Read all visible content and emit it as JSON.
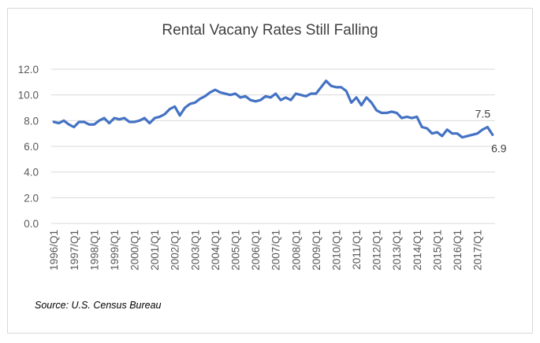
{
  "chart_data": {
    "type": "line",
    "title": "Rental Vacany Rates Still Falling",
    "source": "Source: U.S. Census Bureau",
    "ylim": [
      0,
      12
    ],
    "y_ticks": [
      "0.0",
      "2.0",
      "4.0",
      "6.0",
      "8.0",
      "10.0",
      "12.0"
    ],
    "x_tick_labels": [
      "1996/Q1",
      "1997/Q1",
      "1998/Q1",
      "1999/Q1",
      "2000/Q1",
      "2001/Q1",
      "2002/Q1",
      "2003/Q1",
      "2004/Q1",
      "2005/Q1",
      "2006/Q1",
      "2007/Q1",
      "2008/Q1",
      "2009/Q1",
      "2010/Q1",
      "2011/Q1",
      "2012/Q1",
      "2013/Q1",
      "2014/Q1",
      "2015/Q1",
      "2016/Q1",
      "2017/Q1"
    ],
    "grid": "horizontal",
    "line_color": "#4472c4",
    "annotations": [
      {
        "label": "7.5",
        "value": 7.5,
        "quarter": "2017/Q3"
      },
      {
        "label": "6.9",
        "value": 6.9,
        "quarter": "2017/Q4"
      }
    ],
    "series": [
      {
        "quarters_start": "1996/Q1",
        "quarters_end": "2017/Q4",
        "values": [
          7.9,
          7.8,
          8.0,
          7.7,
          7.5,
          7.9,
          7.9,
          7.7,
          7.7,
          8.0,
          8.2,
          7.8,
          8.2,
          8.1,
          8.2,
          7.9,
          7.9,
          8.0,
          8.2,
          7.8,
          8.2,
          8.3,
          8.5,
          8.9,
          9.1,
          8.4,
          9.0,
          9.3,
          9.4,
          9.7,
          9.9,
          10.2,
          10.4,
          10.2,
          10.1,
          10.0,
          10.1,
          9.8,
          9.9,
          9.6,
          9.5,
          9.6,
          9.9,
          9.8,
          10.1,
          9.6,
          9.8,
          9.6,
          10.1,
          10.0,
          9.9,
          10.1,
          10.1,
          10.6,
          11.1,
          10.7,
          10.6,
          10.6,
          10.3,
          9.4,
          9.8,
          9.2,
          9.8,
          9.4,
          8.8,
          8.6,
          8.6,
          8.7,
          8.6,
          8.2,
          8.3,
          8.2,
          8.3,
          7.5,
          7.4,
          7.0,
          7.1,
          6.8,
          7.3,
          7.0,
          7.0,
          6.7,
          6.8,
          6.9,
          7.0,
          7.3,
          7.5,
          6.9
        ]
      }
    ]
  }
}
